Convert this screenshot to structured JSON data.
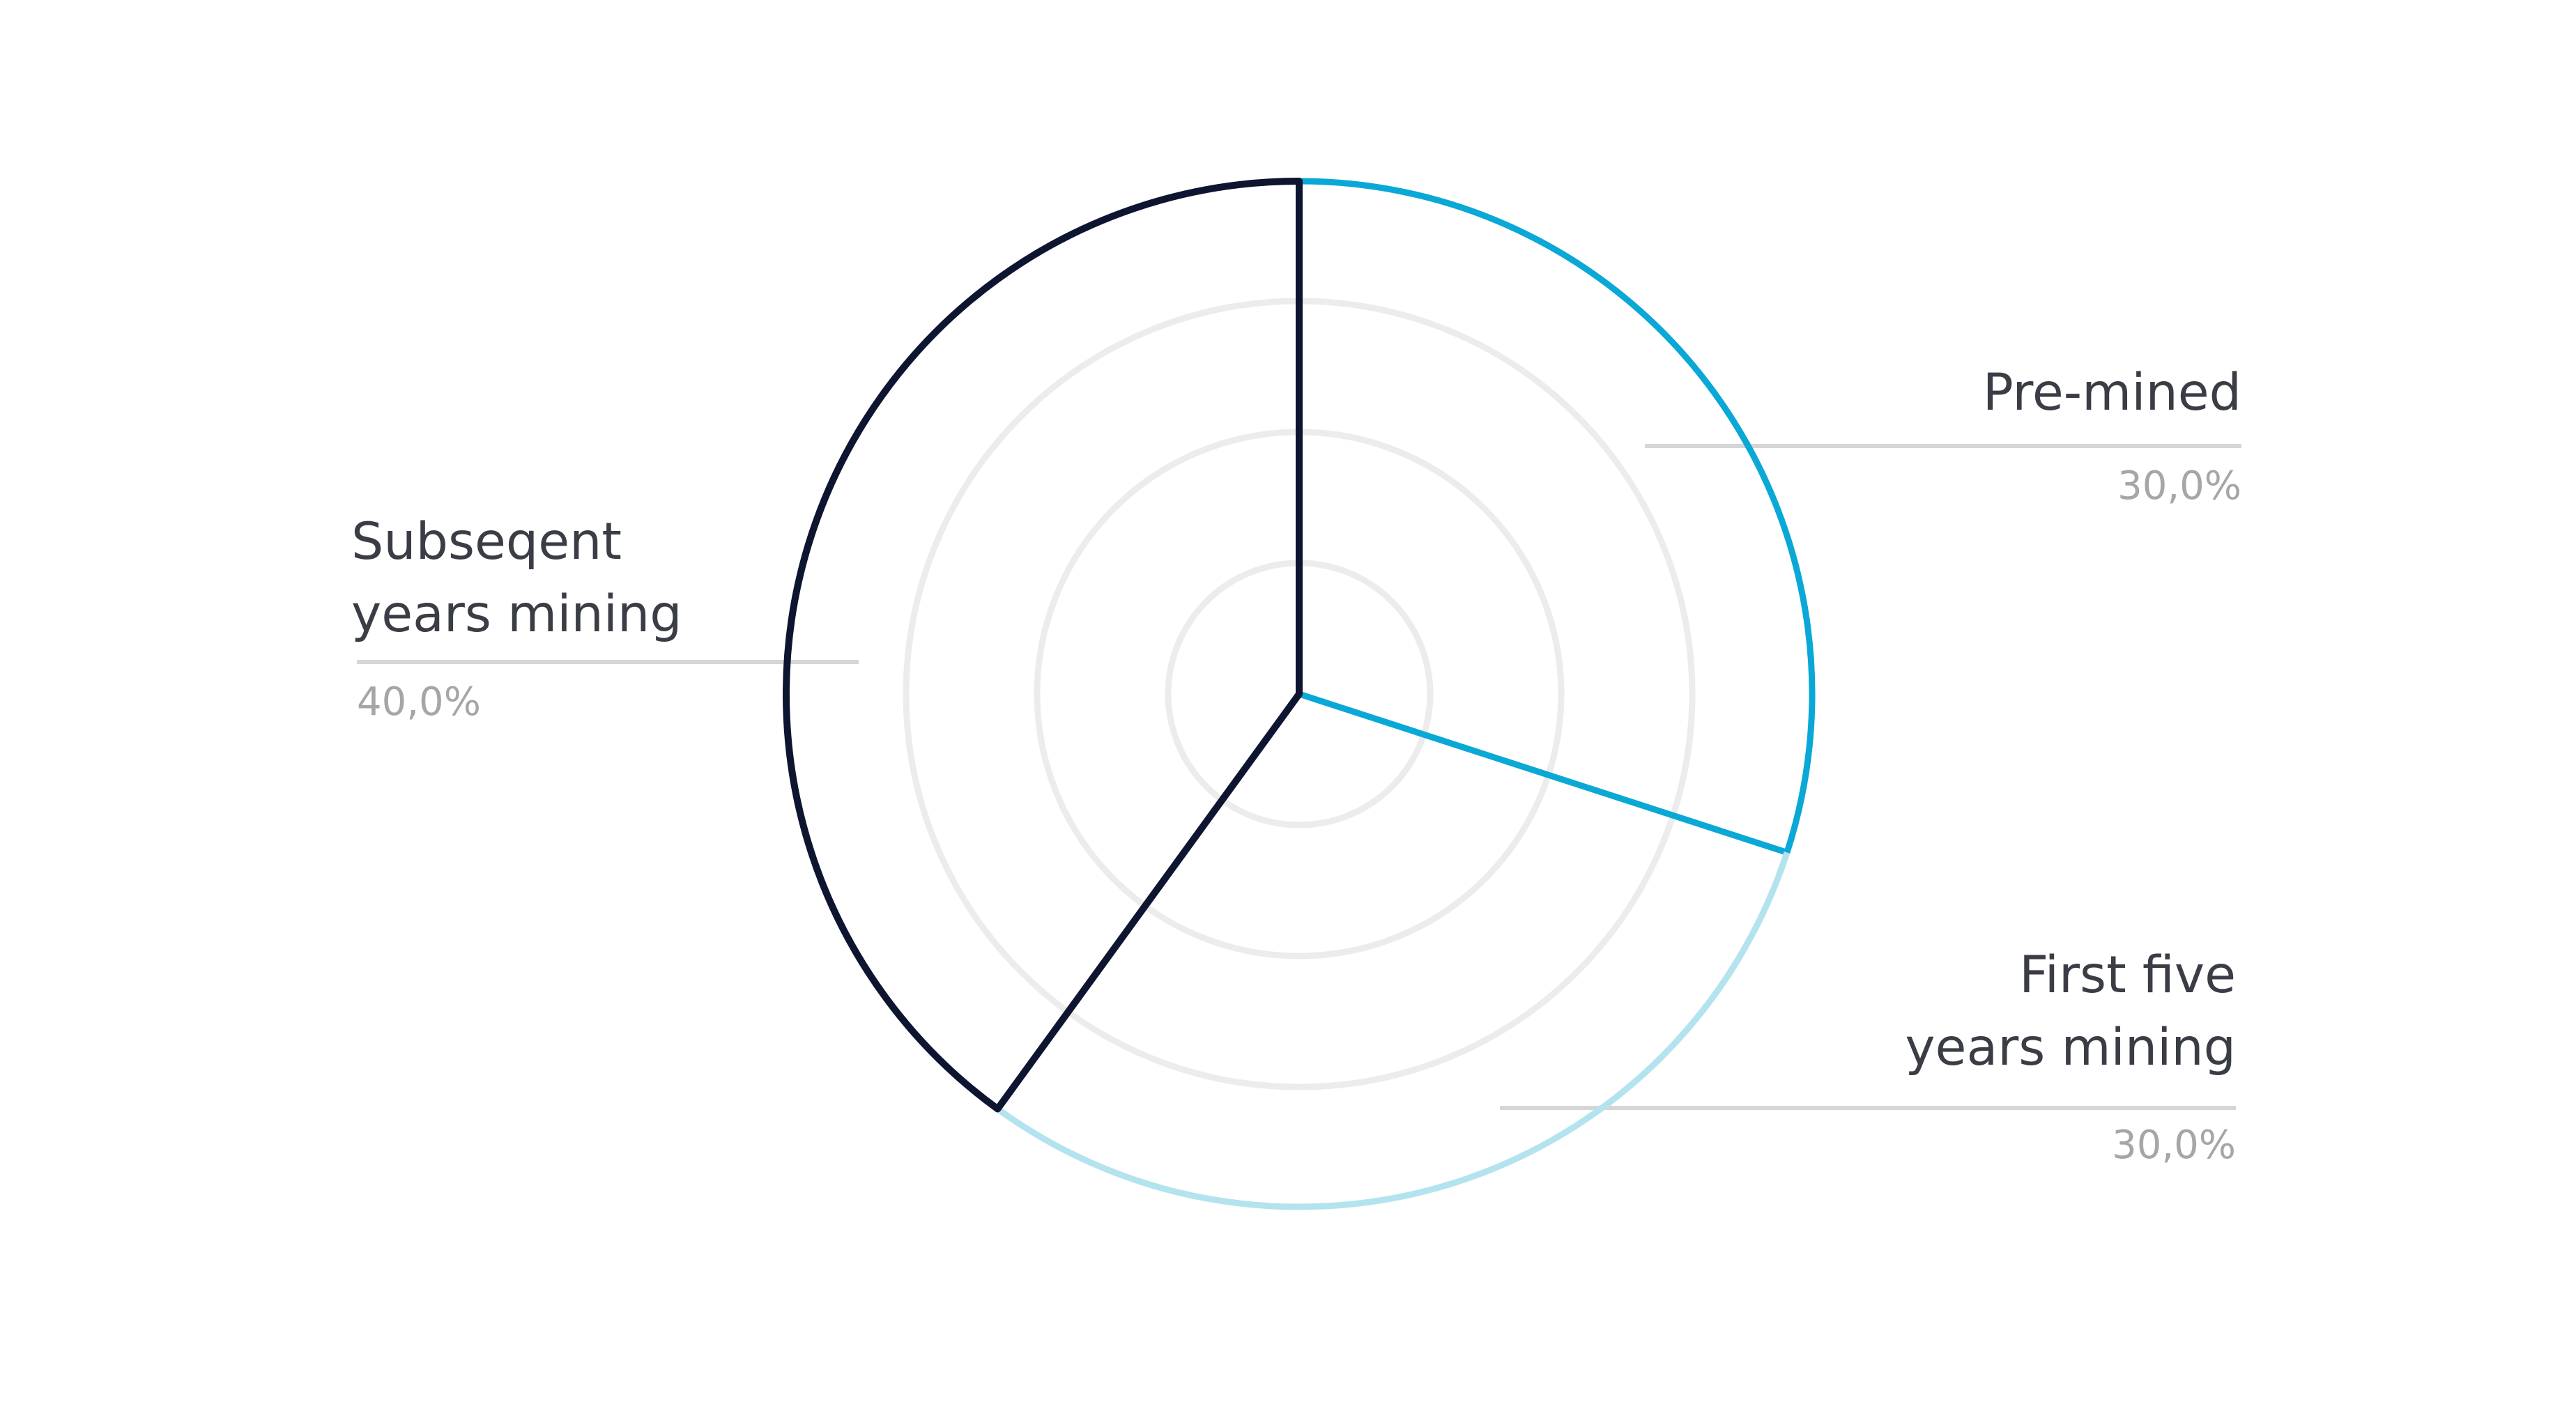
{
  "chart_data": {
    "type": "pie",
    "title": "",
    "grid": true,
    "legend": "none",
    "slices": [
      {
        "label_lines": [
          "Pre-mined"
        ],
        "value": 30.0,
        "value_label": "30,0%",
        "color": "#0aa8d6"
      },
      {
        "label_lines": [
          "First five",
          "years mining"
        ],
        "value": 30.0,
        "value_label": "30,0%",
        "color": "#b3e3ee"
      },
      {
        "label_lines": [
          "Subseqent",
          "years mining"
        ],
        "value": 40.0,
        "value_label": "40,0%",
        "color": "#0d1530"
      }
    ],
    "gridline_color": "#ececec",
    "leader_line_color": "#d6d6d6"
  }
}
